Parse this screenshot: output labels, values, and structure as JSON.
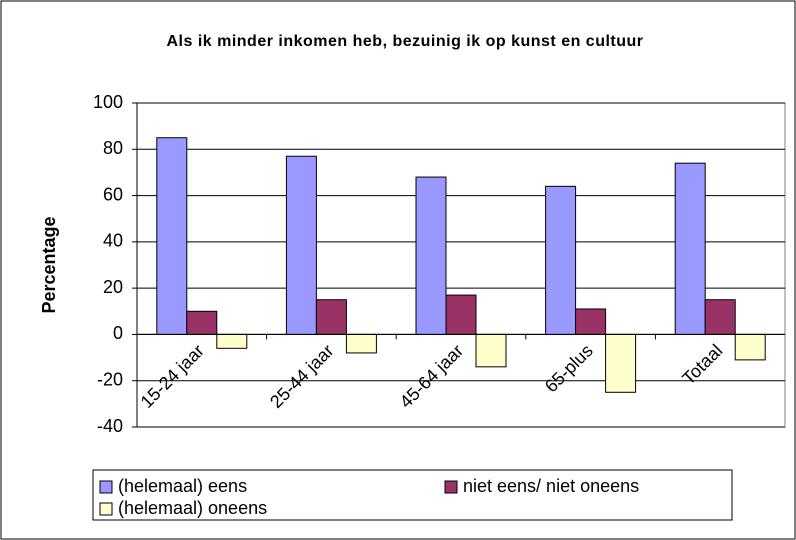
{
  "chart_data": {
    "type": "bar",
    "title": "Als ik minder inkomen heb, bezuinig ik op kunst en cultuur",
    "ylabel": "Percentage",
    "categories": [
      "15-24 jaar",
      "25-44 jaar",
      "45-64 jaar",
      "65-plus",
      "Totaal"
    ],
    "series": [
      {
        "name": "(helemaal) eens",
        "color": "#9999ff",
        "values": [
          85,
          77,
          68,
          64,
          74
        ]
      },
      {
        "name": "niet eens/ niet oneens",
        "color": "#993366",
        "values": [
          10,
          15,
          17,
          11,
          15
        ]
      },
      {
        "name": "(helemaal) oneens",
        "color": "#ffffcc",
        "values": [
          -6,
          -8,
          -14,
          -25,
          -11
        ]
      }
    ],
    "ylim": [
      -40,
      100
    ],
    "yticks": [
      -40,
      -20,
      0,
      20,
      40,
      60,
      80,
      100
    ],
    "grid": true,
    "legend": "bottom"
  }
}
